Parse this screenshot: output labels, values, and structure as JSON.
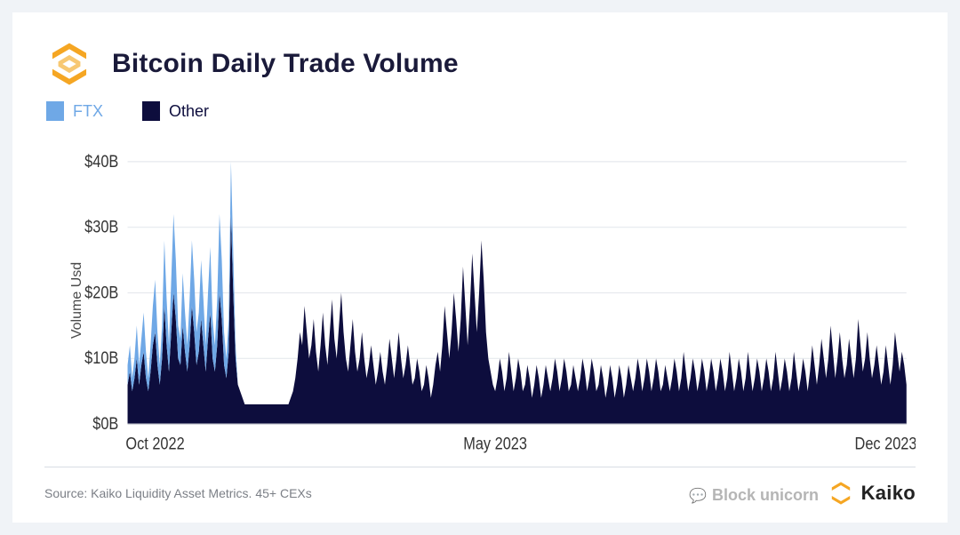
{
  "title": "Bitcoin Daily Trade Volume",
  "title_color": "#1a1a3a",
  "ylabel": "Volume Usd",
  "legend": [
    {
      "label": "FTX",
      "color": "#6fa8e6"
    },
    {
      "label": "Other",
      "color": "#0d0d3d"
    }
  ],
  "source": "Source: Kaiko Liquidity Asset Metrics. 45+ CEXs",
  "brand": "Kaiko",
  "brand_accent": "#f5a623",
  "watermark": "Block unicorn",
  "chart": {
    "type": "stacked-area",
    "background_color": "#ffffff",
    "grid_color": "#e6e9ee",
    "axis_color": "#c9ccd2",
    "ylim": [
      0,
      42
    ],
    "yticks": [
      0,
      10,
      20,
      30,
      40
    ],
    "ytick_labels": [
      "$0B",
      "$10B",
      "$20B",
      "$30B",
      "$40B"
    ],
    "xtick_positions": [
      12,
      160,
      330
    ],
    "xtick_labels": [
      "Oct 2022",
      "May 2023",
      "Dec 2023"
    ],
    "n_points": 340,
    "series": [
      {
        "name": "Other",
        "color": "#0d0d3d",
        "values": [
          6,
          8,
          5,
          7,
          10,
          6,
          9,
          11,
          7,
          5,
          8,
          12,
          14,
          9,
          6,
          10,
          18,
          12,
          8,
          14,
          20,
          16,
          10,
          9,
          15,
          11,
          8,
          12,
          18,
          14,
          9,
          11,
          16,
          12,
          8,
          13,
          17,
          10,
          8,
          12,
          20,
          16,
          9,
          7,
          11,
          32,
          20,
          10,
          6,
          5,
          4,
          3,
          3,
          3,
          3,
          3,
          3,
          3,
          3,
          3,
          3,
          3,
          3,
          3,
          3,
          3,
          3,
          3,
          3,
          3,
          3,
          4,
          5,
          7,
          10,
          14,
          12,
          18,
          14,
          10,
          12,
          16,
          11,
          8,
          12,
          17,
          12,
          9,
          14,
          19,
          13,
          10,
          15,
          20,
          14,
          10,
          8,
          12,
          16,
          11,
          8,
          10,
          14,
          10,
          7,
          9,
          12,
          9,
          6,
          8,
          11,
          8,
          6,
          9,
          13,
          10,
          7,
          10,
          14,
          10,
          7,
          9,
          12,
          9,
          6,
          7,
          10,
          8,
          5,
          6,
          9,
          7,
          4,
          6,
          9,
          11,
          8,
          12,
          18,
          14,
          10,
          14,
          20,
          16,
          11,
          16,
          24,
          18,
          12,
          18,
          26,
          20,
          14,
          20,
          28,
          22,
          14,
          10,
          8,
          6,
          5,
          7,
          10,
          8,
          5,
          7,
          11,
          8,
          5,
          7,
          10,
          8,
          5,
          6,
          9,
          7,
          4,
          6,
          9,
          7,
          4,
          6,
          9,
          7,
          5,
          7,
          10,
          8,
          5,
          7,
          10,
          8,
          5,
          6,
          9,
          7,
          5,
          7,
          10,
          8,
          5,
          7,
          10,
          8,
          5,
          6,
          9,
          7,
          4,
          6,
          9,
          7,
          4,
          6,
          9,
          7,
          4,
          6,
          9,
          7,
          5,
          7,
          10,
          8,
          5,
          7,
          10,
          8,
          5,
          7,
          10,
          8,
          5,
          6,
          9,
          7,
          5,
          7,
          10,
          8,
          5,
          7,
          11,
          8,
          5,
          7,
          10,
          8,
          5,
          7,
          10,
          8,
          5,
          7,
          10,
          8,
          5,
          7,
          10,
          8,
          5,
          7,
          11,
          8,
          5,
          7,
          10,
          8,
          5,
          7,
          11,
          8,
          5,
          7,
          10,
          8,
          5,
          7,
          10,
          8,
          5,
          7,
          11,
          8,
          5,
          7,
          10,
          8,
          5,
          7,
          11,
          8,
          5,
          7,
          10,
          8,
          5,
          8,
          12,
          9,
          6,
          9,
          13,
          10,
          7,
          10,
          15,
          11,
          7,
          10,
          14,
          10,
          7,
          9,
          13,
          10,
          7,
          10,
          16,
          12,
          8,
          10,
          14,
          10,
          7,
          9,
          12,
          9,
          6,
          8,
          12,
          9,
          6,
          9,
          14,
          11,
          8,
          11,
          9,
          6
        ]
      },
      {
        "name": "FTX",
        "color": "#6fa8e6",
        "values": [
          3,
          4,
          2,
          3,
          5,
          3,
          4,
          6,
          4,
          2,
          4,
          6,
          8,
          5,
          3,
          5,
          10,
          7,
          4,
          8,
          12,
          9,
          5,
          4,
          8,
          6,
          4,
          7,
          10,
          8,
          5,
          6,
          9,
          7,
          4,
          7,
          10,
          6,
          4,
          7,
          12,
          9,
          5,
          3,
          5,
          8,
          6,
          2,
          0,
          0,
          0,
          0,
          0,
          0,
          0,
          0,
          0,
          0,
          0,
          0,
          0,
          0,
          0,
          0,
          0,
          0,
          0,
          0,
          0,
          0,
          0,
          0,
          0,
          0,
          0,
          0,
          0,
          0,
          0,
          0,
          0,
          0,
          0,
          0,
          0,
          0,
          0,
          0,
          0,
          0,
          0,
          0,
          0,
          0,
          0,
          0,
          0,
          0,
          0,
          0,
          0,
          0,
          0,
          0,
          0,
          0,
          0,
          0,
          0,
          0,
          0,
          0,
          0,
          0,
          0,
          0,
          0,
          0,
          0,
          0,
          0,
          0,
          0,
          0,
          0,
          0,
          0,
          0,
          0,
          0,
          0,
          0,
          0,
          0,
          0,
          0,
          0,
          0,
          0,
          0,
          0,
          0,
          0,
          0,
          0,
          0,
          0,
          0,
          0,
          0,
          0,
          0,
          0,
          0,
          0,
          0,
          0,
          0,
          0,
          0,
          0,
          0,
          0,
          0,
          0,
          0,
          0,
          0,
          0,
          0,
          0,
          0,
          0,
          0,
          0,
          0,
          0,
          0,
          0,
          0,
          0,
          0,
          0,
          0,
          0,
          0,
          0,
          0,
          0,
          0,
          0,
          0,
          0,
          0,
          0,
          0,
          0,
          0,
          0,
          0,
          0,
          0,
          0,
          0,
          0,
          0,
          0,
          0,
          0,
          0,
          0,
          0,
          0,
          0,
          0,
          0,
          0,
          0,
          0,
          0,
          0,
          0,
          0,
          0,
          0,
          0,
          0,
          0,
          0,
          0,
          0,
          0,
          0,
          0,
          0,
          0,
          0,
          0,
          0,
          0,
          0,
          0,
          0,
          0,
          0,
          0,
          0,
          0,
          0,
          0,
          0,
          0,
          0,
          0,
          0,
          0,
          0,
          0,
          0,
          0,
          0,
          0,
          0,
          0,
          0,
          0,
          0,
          0,
          0,
          0,
          0,
          0,
          0,
          0,
          0,
          0,
          0,
          0,
          0,
          0,
          0,
          0,
          0,
          0,
          0,
          0,
          0,
          0,
          0,
          0,
          0,
          0,
          0,
          0,
          0,
          0,
          0,
          0,
          0,
          0,
          0,
          0,
          0,
          0,
          0,
          0,
          0,
          0,
          0,
          0,
          0,
          0,
          0,
          0,
          0,
          0,
          0,
          0,
          0,
          0,
          0,
          0,
          0,
          0,
          0,
          0,
          0,
          0,
          0,
          0,
          0,
          0,
          0,
          0,
          0,
          0,
          0,
          0,
          0,
          0
        ]
      }
    ]
  }
}
